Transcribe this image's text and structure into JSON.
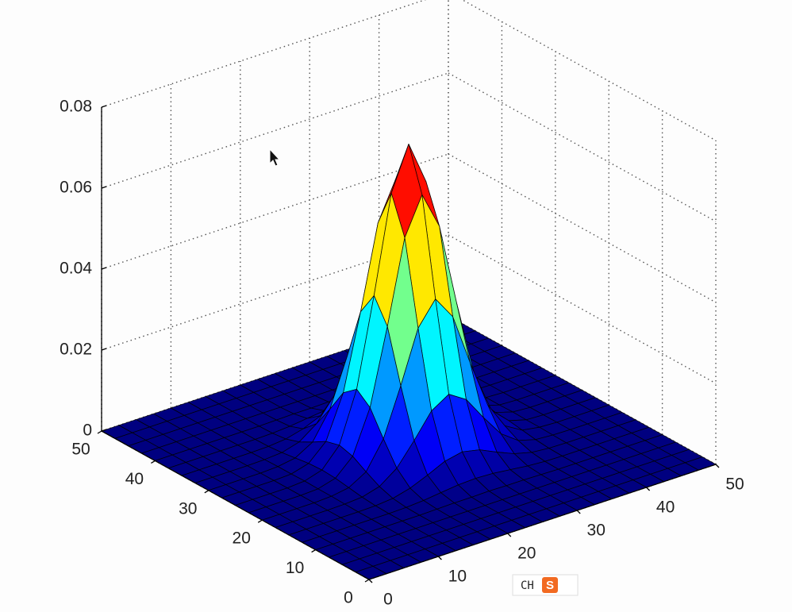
{
  "chart_data": {
    "type": "surface",
    "x": [
      0,
      2.5,
      5,
      7.5,
      10,
      12.5,
      15,
      17.5,
      20,
      22.5,
      25,
      27.5,
      30,
      32.5,
      35,
      37.5,
      40,
      42.5,
      45,
      47.5,
      50
    ],
    "y": [
      0,
      2.5,
      5,
      7.5,
      10,
      12.5,
      15,
      17.5,
      20,
      22.5,
      25,
      27.5,
      30,
      32.5,
      35,
      37.5,
      40,
      42.5,
      45,
      47.5,
      50
    ],
    "z": [
      [
        0,
        0,
        0,
        0,
        0,
        0,
        0,
        0,
        0,
        0,
        0,
        0,
        0,
        0,
        0,
        0,
        0,
        0,
        0,
        0,
        0
      ],
      [
        0,
        0,
        0,
        0,
        0,
        0,
        0,
        0,
        0,
        0,
        0,
        0,
        0,
        0,
        0,
        0,
        0,
        0,
        0,
        0,
        0
      ],
      [
        0,
        0,
        0,
        0,
        0,
        0,
        0,
        0,
        0,
        0,
        0,
        0,
        0,
        0,
        0,
        0,
        0,
        0,
        0,
        0,
        0
      ],
      [
        0,
        0,
        0,
        0,
        0,
        0,
        0,
        0,
        0,
        0,
        0,
        0,
        0,
        0,
        0,
        0,
        0,
        0,
        0,
        0,
        0
      ],
      [
        0,
        0,
        0,
        0,
        0,
        0,
        0,
        0.0001,
        0.0002,
        0.0002,
        0.0003,
        0.0002,
        0.0002,
        0.0001,
        0,
        0,
        0,
        0,
        0,
        0,
        0
      ],
      [
        0,
        0,
        0,
        0,
        0,
        0,
        0.0001,
        0.0004,
        0.0009,
        0.0014,
        0.0016,
        0.0014,
        0.0009,
        0.0004,
        0.0001,
        0,
        0,
        0,
        0,
        0,
        0
      ],
      [
        0,
        0,
        0,
        0,
        0,
        0.0001,
        0.0005,
        0.0016,
        0.0034,
        0.0054,
        0.0063,
        0.0054,
        0.0034,
        0.0016,
        0.0005,
        0.0001,
        0,
        0,
        0,
        0,
        0
      ],
      [
        0,
        0,
        0,
        0,
        0.0001,
        0.0004,
        0.0016,
        0.0047,
        0.0101,
        0.016,
        0.0187,
        0.016,
        0.0101,
        0.0047,
        0.0016,
        0.0004,
        0.0001,
        0,
        0,
        0,
        0
      ],
      [
        0,
        0,
        0,
        0,
        0.0002,
        0.0009,
        0.0034,
        0.0101,
        0.0218,
        0.0346,
        0.0404,
        0.0346,
        0.0218,
        0.0101,
        0.0034,
        0.0009,
        0.0002,
        0,
        0,
        0,
        0
      ],
      [
        0,
        0,
        0,
        0,
        0.0002,
        0.0014,
        0.0054,
        0.016,
        0.0346,
        0.0551,
        0.0643,
        0.0551,
        0.0346,
        0.016,
        0.0054,
        0.0014,
        0.0002,
        0,
        0,
        0,
        0
      ],
      [
        0,
        0,
        0,
        0,
        0.0003,
        0.0016,
        0.0063,
        0.0187,
        0.0404,
        0.0643,
        0.075,
        0.0643,
        0.0404,
        0.0187,
        0.0063,
        0.0016,
        0.0003,
        0,
        0,
        0,
        0
      ],
      [
        0,
        0,
        0,
        0,
        0.0002,
        0.0014,
        0.0054,
        0.016,
        0.0346,
        0.0551,
        0.0643,
        0.0551,
        0.0346,
        0.016,
        0.0054,
        0.0014,
        0.0002,
        0,
        0,
        0,
        0
      ],
      [
        0,
        0,
        0,
        0,
        0.0002,
        0.0009,
        0.0034,
        0.0101,
        0.0218,
        0.0346,
        0.0404,
        0.0346,
        0.0218,
        0.0101,
        0.0034,
        0.0009,
        0.0002,
        0,
        0,
        0,
        0
      ],
      [
        0,
        0,
        0,
        0,
        0.0001,
        0.0004,
        0.0016,
        0.0047,
        0.0101,
        0.016,
        0.0187,
        0.016,
        0.0101,
        0.0047,
        0.0016,
        0.0004,
        0.0001,
        0,
        0,
        0,
        0
      ],
      [
        0,
        0,
        0,
        0,
        0,
        0.0001,
        0.0005,
        0.0016,
        0.0034,
        0.0054,
        0.0063,
        0.0054,
        0.0034,
        0.0016,
        0.0005,
        0.0001,
        0,
        0,
        0,
        0,
        0
      ],
      [
        0,
        0,
        0,
        0,
        0,
        0,
        0.0001,
        0.0004,
        0.0009,
        0.0014,
        0.0016,
        0.0014,
        0.0009,
        0.0004,
        0.0001,
        0,
        0,
        0,
        0,
        0,
        0
      ],
      [
        0,
        0,
        0,
        0,
        0,
        0,
        0,
        0.0001,
        0.0002,
        0.0002,
        0.0003,
        0.0002,
        0.0002,
        0.0001,
        0,
        0,
        0,
        0,
        0,
        0,
        0
      ],
      [
        0,
        0,
        0,
        0,
        0,
        0,
        0,
        0,
        0,
        0,
        0,
        0,
        0,
        0,
        0,
        0,
        0,
        0,
        0,
        0,
        0
      ],
      [
        0,
        0,
        0,
        0,
        0,
        0,
        0,
        0,
        0,
        0,
        0,
        0,
        0,
        0,
        0,
        0,
        0,
        0,
        0,
        0,
        0
      ],
      [
        0,
        0,
        0,
        0,
        0,
        0,
        0,
        0,
        0,
        0,
        0,
        0,
        0,
        0,
        0,
        0,
        0,
        0,
        0,
        0,
        0
      ],
      [
        0,
        0,
        0,
        0,
        0,
        0,
        0,
        0,
        0,
        0,
        0,
        0,
        0,
        0,
        0,
        0,
        0,
        0,
        0,
        0,
        0
      ]
    ],
    "xlim": [
      0,
      50
    ],
    "ylim": [
      0,
      50
    ],
    "zlim": [
      0,
      0.08
    ],
    "xticks": [
      0,
      10,
      20,
      30,
      40,
      50
    ],
    "yticks": [
      0,
      10,
      20,
      30,
      40,
      50
    ],
    "zticks": [
      0,
      0.02,
      0.04,
      0.06,
      0.08
    ],
    "grid": true,
    "colormap": "jet",
    "edge_color": "#000000"
  },
  "ime_indicator": {
    "lang": "CH",
    "logo": "S"
  }
}
